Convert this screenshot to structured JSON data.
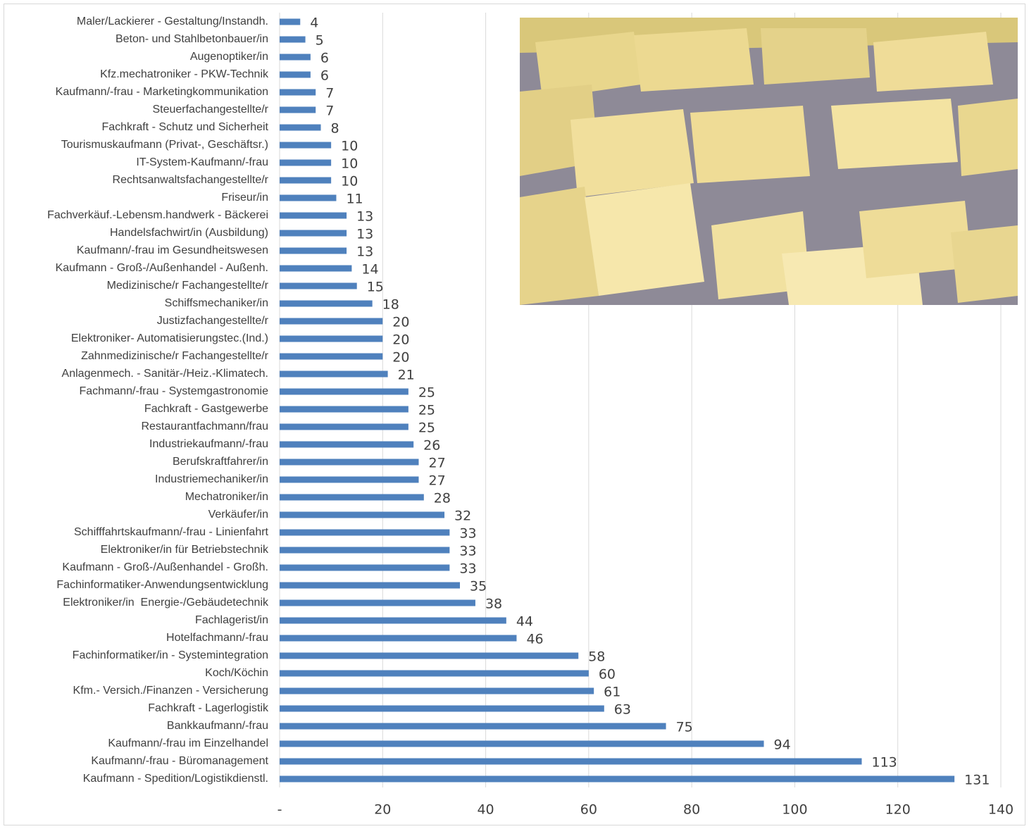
{
  "chart_data": {
    "type": "barh",
    "color": "#4f81bd",
    "grid": true,
    "categories": [
      "Maler/Lackierer - Gestaltung/Instandh.",
      "Beton- und Stahlbetonbauer/in",
      "Augenoptiker/in",
      "Kfz.mechatroniker - PKW-Technik",
      "Kaufmann/-frau - Marketingkommunikation",
      "Steuerfachangestellte/r",
      "Fachkraft - Schutz und Sicherheit",
      "Tourismuskaufmann (Privat-, Geschäftsr.)",
      "IT-System-Kaufmann/-frau",
      "Rechtsanwaltsfachangestellte/r",
      "Friseur/in",
      "Fachverkäuf.-Lebensm.handwerk - Bäckerei",
      "Handelsfachwirt/in (Ausbildung)",
      "Kaufmann/-frau im Gesundheitswesen",
      "Kaufmann - Groß-/Außenhandel - Außenh.",
      "Medizinische/r Fachangestellte/r",
      "Schiffsmechaniker/in",
      "Justizfachangestellte/r",
      "Elektroniker- Automatisierungstec.(Ind.)",
      "Zahnmedizinische/r Fachangestellte/r",
      "Anlagenmech. - Sanitär-/Heiz.-Klimatech.",
      "Fachmann/-frau - Systemgastronomie",
      "Fachkraft - Gastgewerbe",
      "Restaurantfachmann/frau",
      "Industriekaufmann/-frau",
      "Berufskraftfahrer/in",
      "Industriemechaniker/in",
      "Mechatroniker/in",
      "Verkäufer/in",
      "Schifffahrtskaufmann/-frau - Linienfahrt",
      "Elektroniker/in für Betriebstechnik",
      "Kaufmann - Groß-/Außenhandel - Großh.",
      "Fachinformatiker-Anwendungsentwicklung",
      "Elektroniker/in  Energie-/Gebäudetechnik",
      "Fachlagerist/in",
      "Hotelfachmann/-frau",
      "Fachinformatiker/in - Systemintegration",
      "Koch/Köchin",
      "Kfm.- Versich./Finanzen - Versicherung",
      "Fachkraft - Lagerlogistik",
      "Bankkaufmann/-frau",
      "Kaufmann/-frau im Einzelhandel",
      "Kaufmann/-frau - Büromanagement",
      "Kaufmann - Spedition/Logistikdienstl."
    ],
    "values": [
      4,
      5,
      6,
      6,
      7,
      7,
      8,
      10,
      10,
      10,
      11,
      13,
      13,
      13,
      14,
      15,
      18,
      20,
      20,
      20,
      21,
      25,
      25,
      25,
      26,
      27,
      27,
      28,
      32,
      33,
      33,
      33,
      35,
      38,
      44,
      46,
      58,
      60,
      61,
      63,
      75,
      94,
      113,
      131
    ],
    "xlim": [
      0,
      140
    ],
    "xticks": [
      {
        "value": 0,
        "label": "-"
      },
      20,
      40,
      60,
      80,
      100,
      120,
      140
    ]
  }
}
